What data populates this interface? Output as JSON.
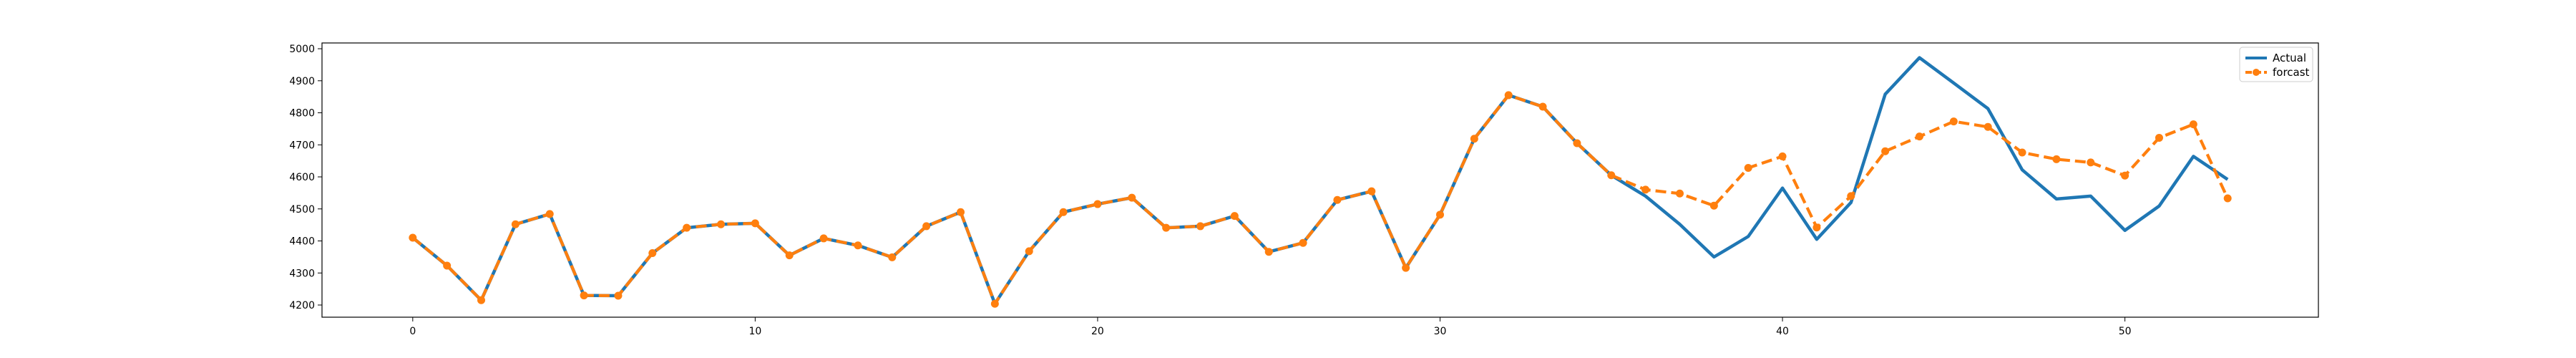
{
  "chart_data": {
    "type": "line",
    "x": [
      0,
      1,
      2,
      3,
      4,
      5,
      6,
      7,
      8,
      9,
      10,
      11,
      12,
      13,
      14,
      15,
      16,
      17,
      18,
      19,
      20,
      21,
      22,
      23,
      24,
      25,
      26,
      27,
      28,
      29,
      30,
      31,
      32,
      33,
      34,
      35,
      36,
      37,
      38,
      39,
      40,
      41,
      42,
      43,
      44,
      45,
      46,
      47,
      48,
      49,
      50,
      51,
      52,
      53
    ],
    "series": [
      {
        "name": "Actual",
        "color": "#1f77b4",
        "style": "solid",
        "values": [
          4410,
          4323,
          4215,
          4452,
          4484,
          4230,
          4229,
          4362,
          4441,
          4452,
          4455,
          4355,
          4408,
          4386,
          4349,
          4446,
          4490,
          4204,
          4368,
          4490,
          4515,
          4535,
          4441,
          4446,
          4478,
          4366,
          4394,
          4528,
          4555,
          4316,
          4482,
          4719,
          4855,
          4819,
          4705,
          4605,
          4540,
          4452,
          4350,
          4414,
          4565,
          4405,
          4520,
          4858,
          4972,
          4893,
          4813,
          4622,
          4531,
          4540,
          4433,
          4509,
          4664,
          4592
        ]
      },
      {
        "name": "forcast",
        "color": "#ff7f0e",
        "style": "dashed",
        "marker": "circle",
        "values": [
          4410,
          4323,
          4215,
          4452,
          4484,
          4230,
          4229,
          4362,
          4441,
          4452,
          4455,
          4355,
          4408,
          4386,
          4349,
          4446,
          4490,
          4204,
          4368,
          4490,
          4515,
          4535,
          4441,
          4446,
          4478,
          4366,
          4394,
          4528,
          4555,
          4316,
          4482,
          4719,
          4855,
          4819,
          4705,
          4605,
          4560,
          4548,
          4510,
          4628,
          4664,
          4442,
          4540,
          4680,
          4726,
          4773,
          4756,
          4676,
          4655,
          4645,
          4604,
          4722,
          4764,
          4533
        ]
      }
    ],
    "xticks": [
      0,
      10,
      20,
      30,
      40,
      50
    ],
    "yticks": [
      4200,
      4300,
      4400,
      4500,
      4600,
      4700,
      4800,
      4900,
      5000
    ],
    "xlim": [
      -2.65,
      55.65
    ],
    "ylim": [
      4162,
      5018
    ],
    "legend_position": "top-right",
    "grid": false
  }
}
